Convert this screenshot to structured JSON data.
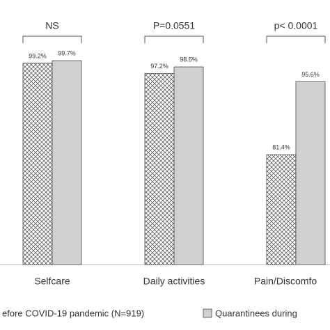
{
  "chart_data": {
    "type": "bar",
    "categories": [
      "Selfcare",
      "Daily activities",
      "Pain/Discomfo"
    ],
    "annotations": [
      "NS",
      "P=0.0551",
      "p< 0.0001"
    ],
    "series": [
      {
        "name": "efore COVID-19 pandemic (N=919)",
        "color": "#ffffff",
        "pattern": "crosshatch",
        "values": [
          99.2,
          97.2,
          81.4
        ],
        "value_labels": [
          "99.2%",
          "97.2%",
          "81.4%"
        ]
      },
      {
        "name": "Quarantinees during",
        "color": "#d0d0d0",
        "values": [
          99.7,
          98.5,
          95.6
        ],
        "value_labels": [
          "99.7%",
          "98.5%",
          "95.6%"
        ]
      }
    ],
    "ylim": [
      60,
      100
    ]
  }
}
